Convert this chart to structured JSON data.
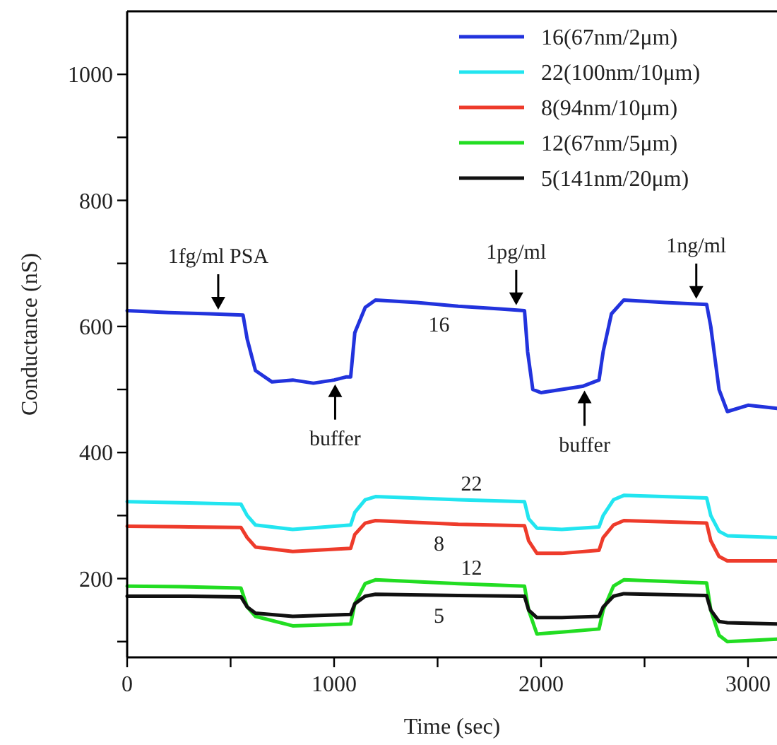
{
  "chart_data": {
    "type": "line",
    "xlabel": "Time (sec)",
    "ylabel": "Conductance (nS)",
    "xlim": [
      0,
      3140
    ],
    "ylim": [
      75,
      1100
    ],
    "xticks": [
      0,
      {
        "value": 500,
        "label": null
      },
      1000,
      {
        "value": 1500,
        "label": null
      },
      2000,
      {
        "value": 2500,
        "label": null
      },
      3000
    ],
    "yticks": [
      {
        "value": 100,
        "label": null
      },
      200,
      {
        "value": 300,
        "label": null
      },
      400,
      {
        "value": 500,
        "label": null
      },
      600,
      {
        "value": 700,
        "label": null
      },
      800,
      {
        "value": 900,
        "label": null
      },
      1000
    ],
    "legend": "top right",
    "grid": false,
    "marker": "none",
    "line_style": "solid",
    "series": [
      {
        "name": "16(67nm/2μm)",
        "color": "#2233dd",
        "x": [
          0,
          200,
          400,
          560,
          580,
          620,
          700,
          800,
          900,
          1000,
          1060,
          1080,
          1100,
          1150,
          1200,
          1400,
          1600,
          1800,
          1920,
          1935,
          1960,
          2000,
          2100,
          2200,
          2280,
          2300,
          2340,
          2400,
          2600,
          2800,
          2820,
          2860,
          2900,
          3000,
          3140
        ],
        "values": [
          625,
          622,
          620,
          618,
          580,
          530,
          512,
          515,
          510,
          515,
          520,
          520,
          590,
          630,
          642,
          638,
          632,
          628,
          625,
          560,
          500,
          495,
          500,
          505,
          515,
          560,
          620,
          642,
          638,
          635,
          600,
          500,
          465,
          475,
          470
        ]
      },
      {
        "name": "22(100nm/10μm)",
        "color": "#22e5f0",
        "x": [
          0,
          300,
          550,
          580,
          620,
          800,
          1080,
          1100,
          1150,
          1200,
          1600,
          1920,
          1940,
          1980,
          2100,
          2280,
          2300,
          2350,
          2400,
          2800,
          2820,
          2860,
          2900,
          3140
        ],
        "values": [
          322,
          320,
          318,
          300,
          285,
          278,
          285,
          305,
          325,
          330,
          325,
          322,
          295,
          280,
          278,
          282,
          300,
          325,
          332,
          328,
          300,
          275,
          268,
          265
        ]
      },
      {
        "name": "8(94nm/10μm)",
        "color": "#ee3b2b",
        "x": [
          0,
          300,
          550,
          580,
          620,
          800,
          1080,
          1100,
          1150,
          1200,
          1600,
          1920,
          1940,
          1980,
          2100,
          2280,
          2300,
          2350,
          2400,
          2800,
          2820,
          2860,
          2900,
          3140
        ],
        "values": [
          283,
          282,
          281,
          265,
          250,
          243,
          248,
          270,
          288,
          292,
          286,
          284,
          260,
          240,
          240,
          245,
          265,
          285,
          292,
          288,
          260,
          235,
          228,
          228
        ]
      },
      {
        "name": "12(67nm/5μm)",
        "color": "#22dd22",
        "x": [
          0,
          300,
          550,
          580,
          620,
          800,
          1080,
          1100,
          1150,
          1200,
          1600,
          1920,
          1940,
          1980,
          2100,
          2280,
          2300,
          2350,
          2400,
          2800,
          2820,
          2860,
          2900,
          3140
        ],
        "values": [
          188,
          187,
          185,
          155,
          140,
          125,
          128,
          160,
          192,
          198,
          192,
          188,
          150,
          112,
          115,
          120,
          150,
          188,
          198,
          193,
          150,
          110,
          100,
          104
        ]
      },
      {
        "name": "5(141nm/20μm)",
        "color": "#111111",
        "x": [
          0,
          300,
          550,
          580,
          620,
          800,
          1080,
          1100,
          1150,
          1200,
          1600,
          1920,
          1940,
          1980,
          2100,
          2280,
          2300,
          2350,
          2400,
          2800,
          2820,
          2860,
          2900,
          3140
        ],
        "values": [
          172,
          172,
          171,
          155,
          145,
          140,
          143,
          160,
          172,
          175,
          173,
          172,
          150,
          138,
          138,
          140,
          155,
          172,
          176,
          173,
          150,
          132,
          130,
          128
        ]
      }
    ],
    "annotations": [
      {
        "text": "1fg/ml PSA",
        "x": 440,
        "y": 620
      },
      {
        "text": "1pg/ml",
        "x": 1880,
        "y": 627
      },
      {
        "text": "1ng/ml",
        "x": 2750,
        "y": 637
      },
      {
        "text": "buffer",
        "x": 1005,
        "y": 515
      },
      {
        "text": "buffer",
        "x": 2210,
        "y": 505
      },
      "16",
      "22",
      "8",
      "12",
      "5"
    ]
  }
}
